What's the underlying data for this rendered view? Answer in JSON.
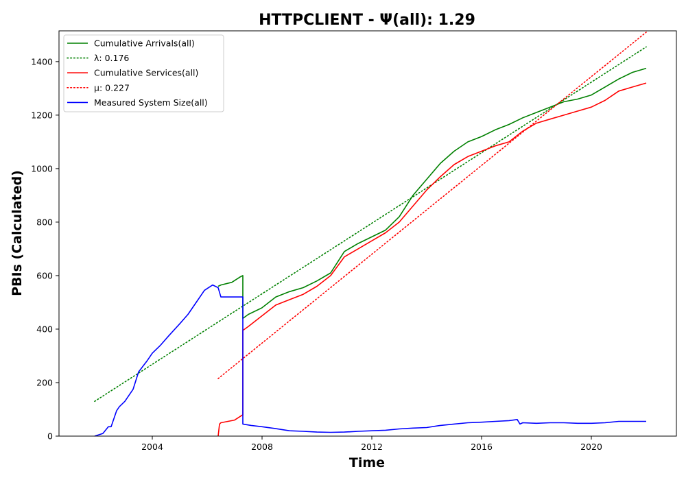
{
  "chart_data": {
    "type": "line",
    "title": "HTTPCLIENT -  Ψ(all): 1.29",
    "xlabel": "Time",
    "ylabel": "PBIs (Calculated)",
    "xlim": [
      2000.6,
      2023.1
    ],
    "ylim": [
      0,
      1515
    ],
    "xticks": [
      2004,
      2008,
      2012,
      2016,
      2020
    ],
    "xtick_labels": [
      "2004",
      "2008",
      "2012",
      "2016",
      "2020"
    ],
    "yticks": [
      0,
      200,
      400,
      600,
      800,
      1000,
      1200,
      1400
    ],
    "ytick_labels": [
      "0",
      "200",
      "400",
      "600",
      "800",
      "1000",
      "1200",
      "1400"
    ],
    "grid": false,
    "legend_position": "top-left",
    "series": [
      {
        "name": "Cumulative Arrivals(all)",
        "style": "solid",
        "color": "#008000",
        "x": [
          2006.4,
          2006.5,
          2006.9,
          2007.2,
          2007.3,
          2007.3,
          2007.5,
          2008.0,
          2008.5,
          2009.0,
          2009.5,
          2010.0,
          2010.5,
          2011.0,
          2011.5,
          2012.0,
          2012.5,
          2013.0,
          2013.5,
          2014.0,
          2014.5,
          2015.0,
          2015.5,
          2016.0,
          2016.5,
          2017.0,
          2017.5,
          2018.0,
          2018.5,
          2019.0,
          2019.5,
          2020.0,
          2020.5,
          2021.0,
          2021.5,
          2022.0
        ],
        "y": [
          560,
          565,
          575,
          595,
          600,
          440,
          455,
          480,
          520,
          540,
          555,
          580,
          610,
          690,
          720,
          745,
          770,
          820,
          900,
          960,
          1020,
          1065,
          1100,
          1120,
          1145,
          1165,
          1190,
          1210,
          1230,
          1250,
          1260,
          1275,
          1305,
          1335,
          1360,
          1375
        ]
      },
      {
        "name": "λ: 0.176",
        "style": "dotted",
        "color": "#008000",
        "x": [
          2001.9,
          2022.0
        ],
        "y": [
          130,
          1455
        ]
      },
      {
        "name": "Cumulative Services(all)",
        "style": "solid",
        "color": "#ff0000",
        "x": [
          2006.4,
          2006.45,
          2006.5,
          2007.0,
          2007.3,
          2007.3,
          2007.5,
          2008.0,
          2008.5,
          2009.0,
          2009.5,
          2010.0,
          2010.5,
          2011.0,
          2011.5,
          2012.0,
          2012.5,
          2013.0,
          2013.5,
          2014.0,
          2014.5,
          2015.0,
          2015.5,
          2016.0,
          2016.5,
          2017.0,
          2017.5,
          2018.0,
          2018.5,
          2019.0,
          2019.5,
          2020.0,
          2020.5,
          2021.0,
          2021.5,
          2022.0
        ],
        "y": [
          0,
          45,
          50,
          60,
          80,
          395,
          410,
          450,
          490,
          510,
          530,
          560,
          600,
          670,
          700,
          730,
          760,
          800,
          860,
          920,
          970,
          1015,
          1045,
          1065,
          1085,
          1100,
          1140,
          1170,
          1185,
          1200,
          1215,
          1230,
          1255,
          1290,
          1305,
          1320
        ]
      },
      {
        "name": "μ: 0.227",
        "style": "dotted",
        "color": "#ff0000",
        "x": [
          2006.4,
          2022.0
        ],
        "y": [
          215,
          1510
        ]
      },
      {
        "name": "Measured System Size(all)",
        "style": "solid",
        "color": "#0000ff",
        "x": [
          2001.9,
          2002.2,
          2002.4,
          2002.5,
          2002.7,
          2002.8,
          2003.0,
          2003.3,
          2003.5,
          2003.8,
          2004.0,
          2004.3,
          2004.6,
          2005.0,
          2005.3,
          2005.6,
          2005.9,
          2006.2,
          2006.4,
          2006.5,
          2006.6,
          2007.0,
          2007.3,
          2007.3,
          2007.6,
          2008.0,
          2008.5,
          2009.0,
          2009.5,
          2010.0,
          2010.5,
          2011.0,
          2011.5,
          2012.0,
          2012.5,
          2013.0,
          2013.5,
          2014.0,
          2014.5,
          2015.0,
          2015.5,
          2016.0,
          2016.5,
          2017.0,
          2017.3,
          2017.4,
          2017.5,
          2018.0,
          2018.5,
          2019.0,
          2019.5,
          2020.0,
          2020.5,
          2021.0,
          2021.5,
          2022.0
        ],
        "y": [
          0,
          10,
          35,
          35,
          95,
          110,
          130,
          175,
          240,
          280,
          310,
          340,
          375,
          420,
          455,
          500,
          545,
          565,
          555,
          520,
          520,
          520,
          520,
          45,
          40,
          35,
          28,
          20,
          18,
          15,
          14,
          15,
          18,
          20,
          22,
          27,
          30,
          32,
          40,
          45,
          50,
          52,
          55,
          58,
          62,
          45,
          50,
          48,
          50,
          50,
          48,
          48,
          50,
          55,
          55,
          55
        ]
      }
    ]
  }
}
